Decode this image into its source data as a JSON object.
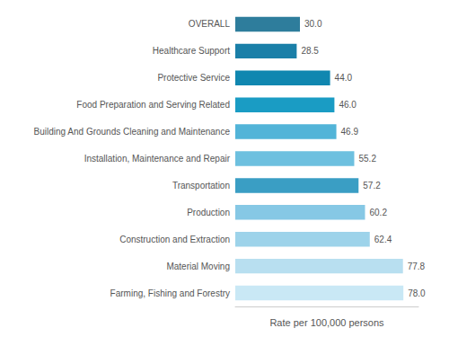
{
  "chart_data": {
    "type": "bar",
    "orientation": "horizontal",
    "xlabel": "Rate per 100,000 persons",
    "categories": [
      "Farming, Fishing and Forestry",
      "Material Moving",
      "Construction and Extraction",
      "Production",
      "Transportation",
      "Installation, Maintenance and Repair",
      "Building And Grounds Cleaning and Maintenance",
      "Food Preparation and Serving Related",
      "Protective Service",
      "Healthcare Support",
      "OVERALL"
    ],
    "values": [
      78.0,
      77.8,
      62.4,
      60.2,
      57.2,
      55.2,
      46.9,
      46.0,
      44.0,
      28.5,
      30.0
    ],
    "value_labels": [
      "78.0",
      "77.8",
      "62.4",
      "60.2",
      "57.2",
      "55.2",
      "46.9",
      "46.0",
      "44.0",
      "28.5",
      "30.0"
    ],
    "colors": [
      "#c9e8f5",
      "#b8dff0",
      "#9dd3ea",
      "#86c8e5",
      "#3a9ec4",
      "#6dc0df",
      "#52b4d8",
      "#1a9cc4",
      "#1087b0",
      "#1a7fa8",
      "#2e7d9c"
    ],
    "xlim": [
      0,
      85
    ],
    "data_labels": true,
    "tick_labels": "y",
    "grid": false
  }
}
